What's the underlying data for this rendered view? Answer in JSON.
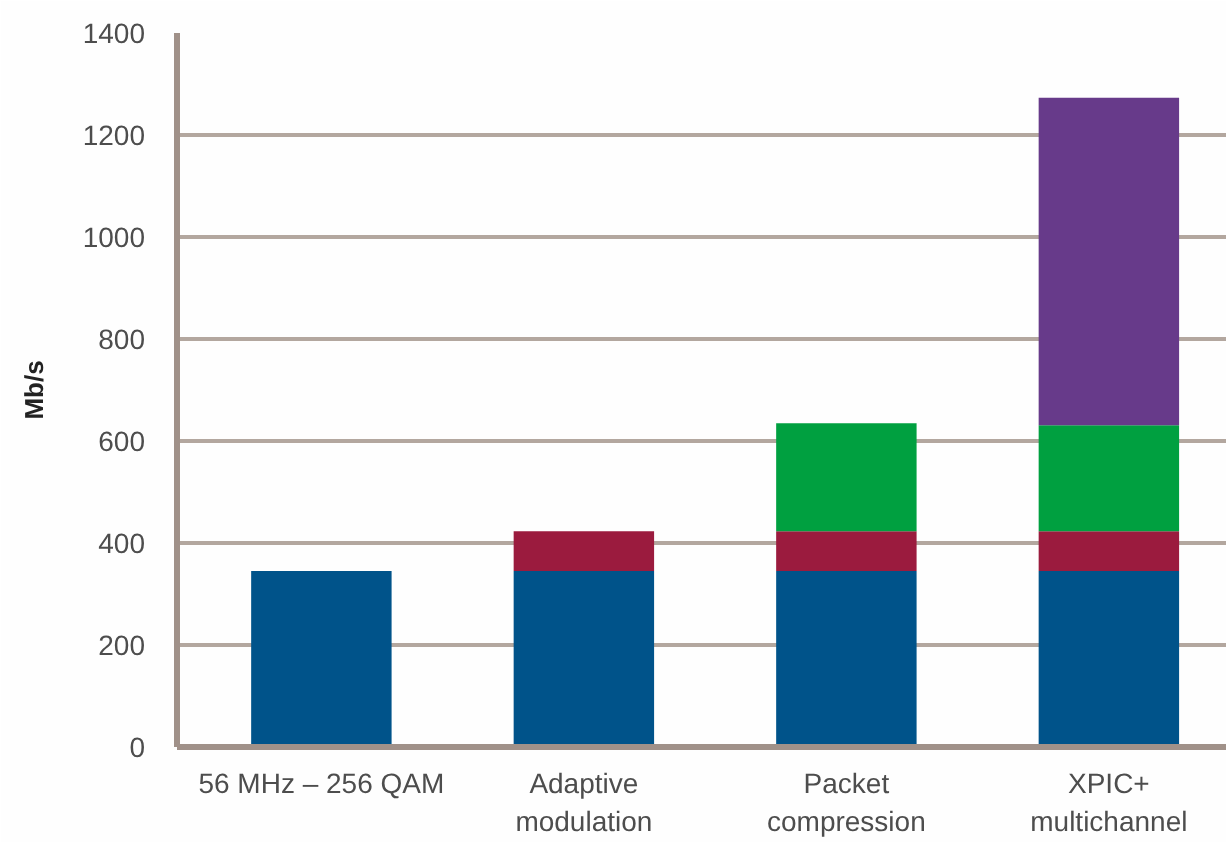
{
  "chart_data": {
    "type": "bar",
    "stacked": true,
    "categories": [
      "56 MHz – 256 QAM",
      "Adaptive\nmodulation",
      "Packet\ncompression",
      "XPIC+\nmultichannel"
    ],
    "series": [
      {
        "color": "#00538a",
        "values": [
          345,
          345,
          345,
          345
        ]
      },
      {
        "color": "#9b1b3e",
        "values": [
          null,
          78,
          78,
          78
        ]
      },
      {
        "color": "#00a040",
        "values": [
          null,
          null,
          212,
          208
        ]
      },
      {
        "color": "#673a8a",
        "values": [
          null,
          null,
          null,
          642
        ]
      }
    ],
    "ylabel": "Mb/s",
    "ylim": [
      0,
      1400
    ],
    "yticks": [
      0,
      200,
      400,
      600,
      800,
      1000,
      1200,
      1400
    ],
    "grid": "y"
  }
}
